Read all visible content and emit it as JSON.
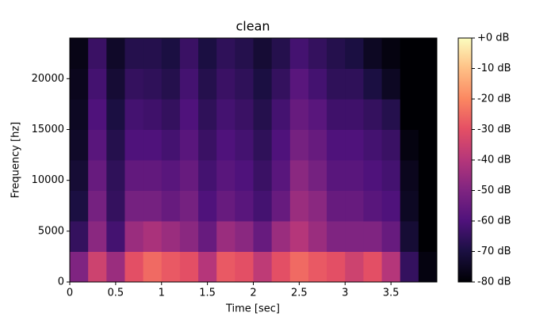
{
  "chart_data": {
    "type": "heatmap",
    "title": "clean",
    "x_label": "Time [sec]",
    "y_label": "Frequency [hz]",
    "xbins": [
      0,
      0.2,
      0.4,
      0.6,
      0.8,
      1.0,
      1.2,
      1.4,
      1.6,
      1.8,
      2.0,
      2.2,
      2.4,
      2.6,
      2.8,
      3.0,
      3.2,
      3.4,
      3.6,
      3.8,
      4.0
    ],
    "ybins": [
      0,
      3000,
      6000,
      9000,
      12000,
      15000,
      18000,
      21000,
      24000
    ],
    "z": [
      [
        -50,
        -35,
        -45,
        -30,
        -25,
        -28,
        -30,
        -40,
        -28,
        -30,
        -38,
        -30,
        -25,
        -28,
        -30,
        -35,
        -30,
        -40,
        -65,
        -78
      ],
      [
        -65,
        -48,
        -62,
        -45,
        -42,
        -45,
        -48,
        -55,
        -45,
        -48,
        -55,
        -45,
        -40,
        -45,
        -50,
        -50,
        -50,
        -55,
        -72,
        -80
      ],
      [
        -70,
        -52,
        -65,
        -52,
        -52,
        -55,
        -52,
        -60,
        -55,
        -58,
        -62,
        -55,
        -45,
        -48,
        -55,
        -55,
        -58,
        -60,
        -75,
        -80
      ],
      [
        -72,
        -55,
        -66,
        -56,
        -56,
        -58,
        -55,
        -62,
        -58,
        -60,
        -64,
        -58,
        -48,
        -52,
        -58,
        -58,
        -60,
        -62,
        -76,
        -80
      ],
      [
        -74,
        -58,
        -68,
        -60,
        -60,
        -62,
        -58,
        -64,
        -60,
        -62,
        -66,
        -60,
        -52,
        -55,
        -60,
        -60,
        -62,
        -64,
        -78,
        -80
      ],
      [
        -75,
        -60,
        -70,
        -62,
        -63,
        -65,
        -60,
        -66,
        -62,
        -64,
        -68,
        -62,
        -55,
        -58,
        -63,
        -63,
        -65,
        -68,
        -80,
        -80
      ],
      [
        -76,
        -62,
        -72,
        -65,
        -66,
        -68,
        -62,
        -68,
        -64,
        -66,
        -70,
        -65,
        -58,
        -62,
        -66,
        -66,
        -70,
        -75,
        -80,
        -80
      ],
      [
        -77,
        -64,
        -74,
        -68,
        -68,
        -70,
        -64,
        -70,
        -66,
        -68,
        -72,
        -68,
        -62,
        -65,
        -68,
        -70,
        -75,
        -78,
        -80,
        -80
      ]
    ],
    "xlim": [
      0,
      4.0
    ],
    "ylim": [
      0,
      24000
    ],
    "xticks": [
      0,
      0.5,
      1,
      1.5,
      2,
      2.5,
      3,
      3.5
    ],
    "yticks": [
      0,
      5000,
      10000,
      15000,
      20000
    ],
    "colormap": "magma",
    "clim": [
      -80,
      0
    ],
    "cticks": [
      {
        "value": 0,
        "label": "+0 dB"
      },
      {
        "value": -10,
        "label": "-10 dB"
      },
      {
        "value": -20,
        "label": "-20 dB"
      },
      {
        "value": -30,
        "label": "-30 dB"
      },
      {
        "value": -40,
        "label": "-40 dB"
      },
      {
        "value": -50,
        "label": "-50 dB"
      },
      {
        "value": -60,
        "label": "-60 dB"
      },
      {
        "value": -70,
        "label": "-70 dB"
      },
      {
        "value": -80,
        "label": "-80 dB"
      }
    ]
  }
}
